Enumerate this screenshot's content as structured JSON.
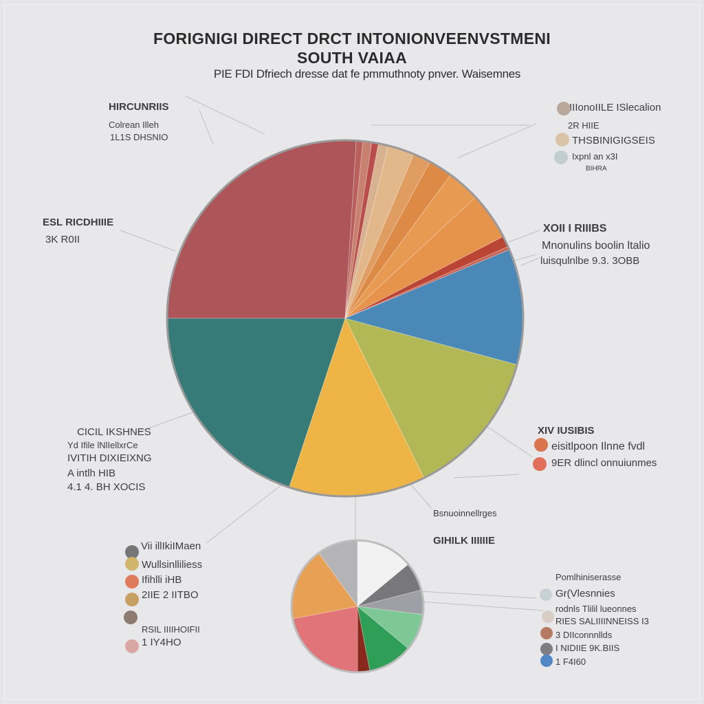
{
  "title_line1": "FORIGNIGI DIRECT DRCT INTONIONVEENVSTMENI",
  "title_line2": "SOUTH VAIAA",
  "subtitle": "PIE FDI Dfriech dresse dat fe pmmuthnoty pnver. Waisemnes",
  "chart_data": [
    {
      "type": "pie",
      "slices": [
        {
          "value": 26.0,
          "color": "#ad5558"
        },
        {
          "value": 0.6,
          "color": "#b9605e"
        },
        {
          "value": 0.8,
          "color": "#c8816e"
        },
        {
          "value": 0.6,
          "color": "#b84d4c"
        },
        {
          "value": 0.9,
          "color": "#d8b190"
        },
        {
          "value": 2.4,
          "color": "#e2b88a"
        },
        {
          "value": 1.6,
          "color": "#df9d62"
        },
        {
          "value": 2.2,
          "color": "#dc8a45"
        },
        {
          "value": 3.0,
          "color": "#e79a52"
        },
        {
          "value": 4.3,
          "color": "#e6934c"
        },
        {
          "value": 1.0,
          "color": "#bb4535"
        },
        {
          "value": 0.3,
          "color": "#c96659"
        },
        {
          "value": 10.5,
          "color": "#4a88b8"
        },
        {
          "value": 13.5,
          "color": "#b3b856"
        },
        {
          "value": 12.4,
          "color": "#eeb446"
        },
        {
          "value": 19.9,
          "color": "#377b78"
        }
      ]
    },
    {
      "type": "pie",
      "slices": [
        {
          "value": 14.0,
          "color": "#f2f2f2"
        },
        {
          "value": 7.0,
          "color": "#78787a"
        },
        {
          "value": 6.0,
          "color": "#9ea0a6"
        },
        {
          "value": 9.0,
          "color": "#7ec896"
        },
        {
          "value": 11.0,
          "color": "#2f9f58"
        },
        {
          "value": 3.0,
          "color": "#8a2a1f"
        },
        {
          "value": 22.0,
          "color": "#e07478"
        },
        {
          "value": 18.0,
          "color": "#e8a055"
        },
        {
          "value": 10.0,
          "color": "#b4b4b6"
        }
      ]
    }
  ],
  "labels": {
    "l1": "HIRCUNRIIS",
    "l2": "Colrean Illeh",
    "l3": "1L1S DHSNIO",
    "l4": "ESL RICDHIIIE",
    "l5": "3K R0II",
    "l6": "CICIL IKSHNES",
    "l7": "Yd Ifile lNlIellxrCe",
    "l8": "IVITIH DIXIEIXNG",
    "l9": "A intlh HIB",
    "l10": "4.1 4. BH XOCIS",
    "l11": "Vii illIkiIMaen",
    "l12": "Wullsinlliliess",
    "l13": "Ifihlli iHB",
    "l14": "2IIE 2 IITBO",
    "l15": "RSIL IIIIHOIFII",
    "l16": "1 IY4HO",
    "r1": "IIIonoIILE ISlecalion",
    "r2": "2R HIIE",
    "r3": "THSBINIGIGSEIS",
    "r4": "Ixpnl an x3I",
    "r5": "BIHRA",
    "r6": "XOII I RIIIBS",
    "r7": "Mnonulins boolin ltalio",
    "r8": "luisqulnlbe 9.3. 3OBB",
    "r9": "XIV IUSIBIS",
    "r10": "eisitlpoon Ilnne fvdl",
    "r11": "9ER dlincl onnuiunmes",
    "m1": "Bsnuoinnellrges",
    "m2": "GIHILK IIIIIIE",
    "p1": "Pomlhiniserasse",
    "p2": "Gr(Vlesnnies",
    "p3": "rodnls Tlilil lueonnes",
    "p4": "RIES SALIIIINNEISS I3",
    "p5": "3 DIIconnnllds",
    "p6": "I NIDIIE 9K.BIIS",
    "p7": "1 F4I60"
  },
  "legend_colors": {
    "r_top": [
      "#b9a79b",
      "#d9c4a7",
      "#c2ced0"
    ],
    "r_mid": [
      "#d9744c",
      "#e06f5b"
    ],
    "l_bottom": [
      "#777777",
      "#d0b56b",
      "#e07a5c",
      "#c7a064",
      "#8e7c70",
      "#d8a6a4"
    ],
    "p_bottom": [
      "#c8d2d6",
      "#d9cec4",
      "#b57b62",
      "#7e7e82",
      "#4f88c4"
    ]
  }
}
